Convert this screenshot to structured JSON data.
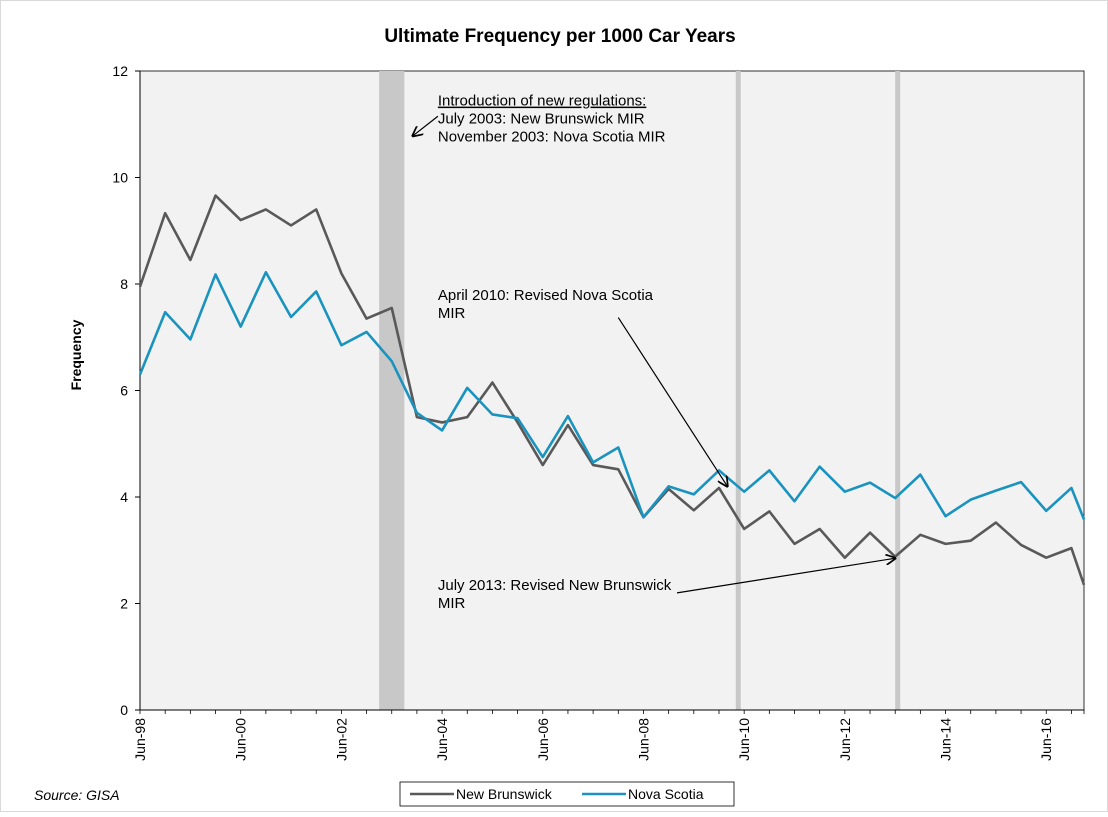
{
  "chart_data": {
    "type": "line",
    "title": "Ultimate Frequency per 1000 Car Years",
    "ylabel": "Frequency",
    "xlabel": "",
    "ylim": [
      0,
      12
    ],
    "yticks": [
      0,
      2,
      4,
      6,
      8,
      10,
      12
    ],
    "xlim": [
      "1998-06",
      "2017-03"
    ],
    "xtick_labels": [
      "Jun-98",
      "Jun-00",
      "Jun-02",
      "Jun-04",
      "Jun-06",
      "Jun-08",
      "Jun-10",
      "Jun-12",
      "Jun-14",
      "Jun-16"
    ],
    "xtick_dates": [
      "1998-06",
      "2000-06",
      "2002-06",
      "2004-06",
      "2006-06",
      "2008-06",
      "2010-06",
      "2012-06",
      "2014-06",
      "2016-06"
    ],
    "grid": false,
    "legend_position": "bottom",
    "x": [
      "1998-06",
      "1998-12",
      "1999-06",
      "1999-12",
      "2000-06",
      "2000-12",
      "2001-06",
      "2001-12",
      "2002-06",
      "2002-12",
      "2003-06",
      "2003-12",
      "2004-06",
      "2004-12",
      "2005-06",
      "2005-12",
      "2006-06",
      "2006-12",
      "2007-06",
      "2007-12",
      "2008-06",
      "2008-12",
      "2009-06",
      "2009-12",
      "2010-06",
      "2010-12",
      "2011-06",
      "2011-12",
      "2012-06",
      "2012-12",
      "2013-06",
      "2013-12",
      "2014-06",
      "2014-12",
      "2015-06",
      "2015-12",
      "2016-06",
      "2016-12",
      "2017-03"
    ],
    "series": [
      {
        "name": "New Brunswick",
        "color": "#595959",
        "values": [
          7.95,
          9.33,
          8.45,
          9.66,
          9.2,
          9.4,
          9.1,
          9.4,
          8.2,
          7.35,
          7.55,
          5.5,
          5.4,
          5.5,
          6.15,
          5.4,
          4.6,
          5.35,
          4.6,
          4.52,
          3.62,
          4.15,
          3.75,
          4.17,
          3.4,
          3.73,
          3.12,
          3.4,
          2.86,
          3.33,
          2.88,
          3.29,
          3.12,
          3.18,
          3.52,
          3.1,
          2.86,
          3.04,
          2.35
        ]
      },
      {
        "name": "Nova Scotia",
        "color": "#1a93bf",
        "values": [
          6.3,
          7.47,
          6.96,
          8.18,
          7.2,
          8.22,
          7.38,
          7.86,
          6.85,
          7.1,
          6.55,
          5.58,
          5.25,
          6.05,
          5.55,
          5.48,
          4.75,
          5.52,
          4.65,
          4.93,
          3.62,
          4.2,
          4.05,
          4.5,
          4.1,
          4.5,
          3.92,
          4.57,
          4.1,
          4.27,
          3.98,
          4.42,
          3.64,
          3.95,
          4.12,
          4.28,
          3.74,
          4.17,
          3.58
        ]
      }
    ],
    "bands": [
      {
        "from": "2003-03",
        "to": "2003-09"
      },
      {
        "from": "2010-04",
        "to": "2010-05"
      },
      {
        "from": "2013-06",
        "to": "2013-07"
      }
    ],
    "annotations": [
      {
        "id": "regulations",
        "lines": [
          "Introduction of new regulations:",
          "July 2003: New Brunswick MIR",
          "November 2003: Nova Scotia MIR"
        ],
        "underline_first": true,
        "text_at": {
          "x": "2004-05",
          "y": 11.35
        },
        "arrow_from": {
          "x": "2004-05",
          "y": 11.15
        },
        "arrow_to": {
          "x": "2003-11",
          "y": 10.78
        }
      },
      {
        "id": "nova-scotia-2010",
        "lines": [
          "April 2010: Revised Nova Scotia",
          "MIR"
        ],
        "underline_first": false,
        "text_at": {
          "x": "2004-05",
          "y": 7.7
        },
        "arrow_from": {
          "x": "2007-12",
          "y": 7.37
        },
        "arrow_to": {
          "x": "2010-02",
          "y": 4.2
        }
      },
      {
        "id": "new-brunswick-2013",
        "lines": [
          "July 2013: Revised New Brunswick",
          "MIR"
        ],
        "underline_first": false,
        "text_at": {
          "x": "2004-05",
          "y": 2.25
        },
        "arrow_from": {
          "x": "2009-02",
          "y": 2.2
        },
        "arrow_to": {
          "x": "2013-06",
          "y": 2.85
        }
      }
    ],
    "source": "Source: GISA"
  }
}
